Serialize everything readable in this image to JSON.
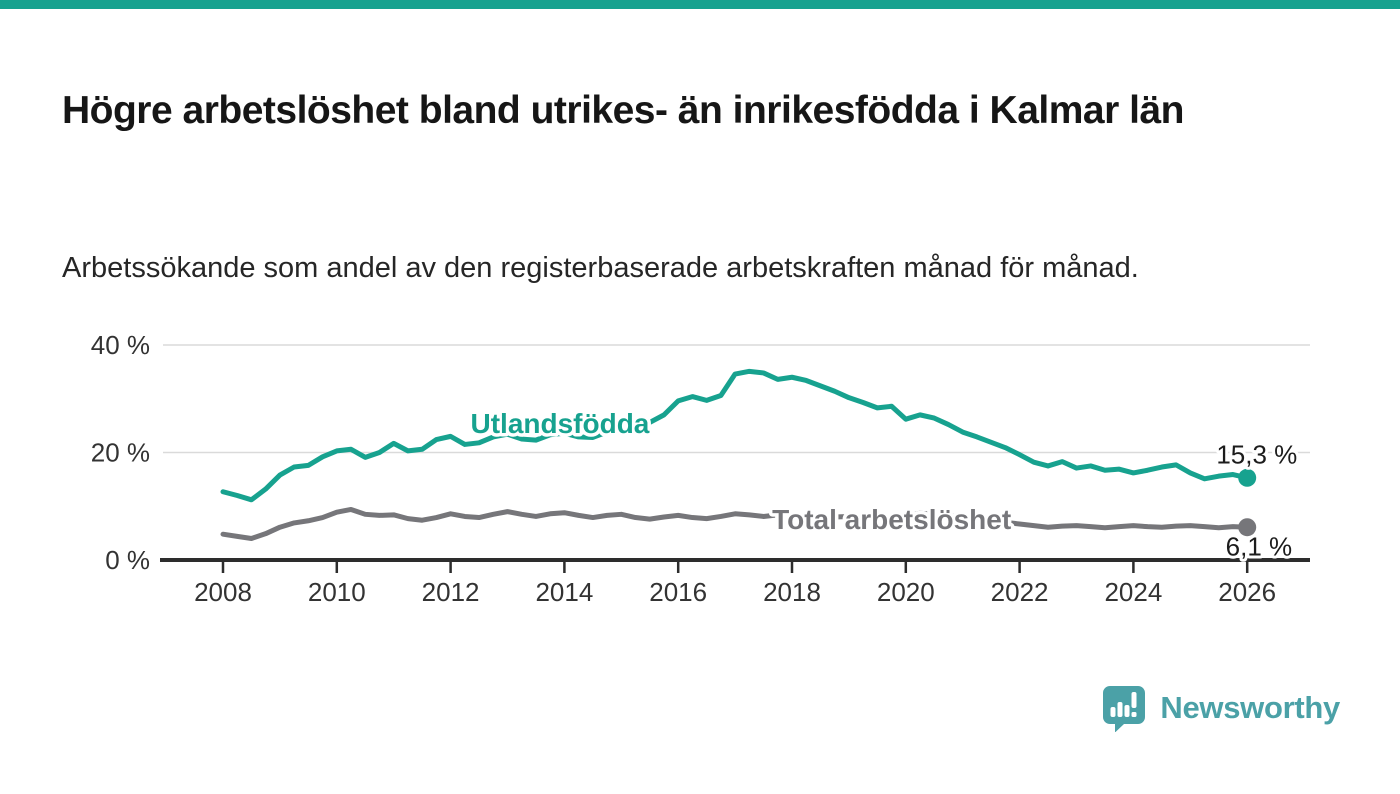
{
  "branding": {
    "top_bar_color": "#17a28f",
    "logo_text": "Newsworthy",
    "logo_color": "#4ba1a7"
  },
  "chart_data": {
    "type": "line",
    "title": "Högre arbetslöshet bland utrikes- än inrikesfödda i Kalmar län",
    "subtitle": "Arbetssökande som andel av den registerbaserade arbetskraften månad för månad.",
    "grid": "horizontal",
    "legend_position": "inline-labels",
    "xlim": [
      2006.9,
      2027.1
    ],
    "ylim": [
      0,
      42
    ],
    "x_start": 2008,
    "x_step": 0.25,
    "yticks": [
      {
        "value": 0,
        "label": "0 %"
      },
      {
        "value": 20,
        "label": "20 %"
      },
      {
        "value": 40,
        "label": "40 %"
      }
    ],
    "xticks": [
      {
        "value": 2008,
        "label": "2008"
      },
      {
        "value": 2010,
        "label": "2010"
      },
      {
        "value": 2012,
        "label": "2012"
      },
      {
        "value": 2014,
        "label": "2014"
      },
      {
        "value": 2016,
        "label": "2016"
      },
      {
        "value": 2018,
        "label": "2018"
      },
      {
        "value": 2020,
        "label": "2020"
      },
      {
        "value": 2022,
        "label": "2022"
      },
      {
        "value": 2024,
        "label": "2024"
      },
      {
        "value": 2026,
        "label": "2026"
      }
    ],
    "axis_color": "#2d2d2d",
    "grid_color": "#dadada",
    "tick_text_color": "#333333",
    "series": [
      {
        "name": "Utlandsfödda",
        "color": "#17a28f",
        "end_label": "15,3 %",
        "end_value": 15.3,
        "label_pos": {
          "x": 2012.35,
          "y": 23.6,
          "anchor": "start"
        },
        "end_label_pos": {
          "x": 2026.88,
          "y": 18.0,
          "anchor": "end"
        },
        "values": [
          12.7,
          12.0,
          11.2,
          13.2,
          15.8,
          17.3,
          17.6,
          19.2,
          20.3,
          20.6,
          19.1,
          20.0,
          21.7,
          20.3,
          20.6,
          22.4,
          23.0,
          21.5,
          21.8,
          22.9,
          23.4,
          22.5,
          22.3,
          23.3,
          23.6,
          22.9,
          22.8,
          23.8,
          24.6,
          25.0,
          25.6,
          27.0,
          29.6,
          30.4,
          29.7,
          30.6,
          34.6,
          35.1,
          34.8,
          33.6,
          34.0,
          33.4,
          32.4,
          31.4,
          30.2,
          29.3,
          28.3,
          28.6,
          26.2,
          27.0,
          26.4,
          25.2,
          23.8,
          22.9,
          21.9,
          20.9,
          19.6,
          18.2,
          17.5,
          18.3,
          17.1,
          17.5,
          16.7,
          16.9,
          16.2,
          16.7,
          17.3,
          17.7,
          16.2,
          15.1,
          15.6,
          15.9,
          15.3
        ]
      },
      {
        "name": "Total arbetslöshet",
        "color": "#76767a",
        "end_label": "6,1 %",
        "end_value": 6.1,
        "label_pos": {
          "x": 2017.65,
          "y": 5.8,
          "anchor": "start"
        },
        "end_label_pos": {
          "x": 2026.79,
          "y": 0.8,
          "anchor": "end"
        },
        "values": [
          4.8,
          4.4,
          4.0,
          4.9,
          6.1,
          6.9,
          7.3,
          7.9,
          8.9,
          9.4,
          8.5,
          8.3,
          8.4,
          7.7,
          7.4,
          7.9,
          8.6,
          8.1,
          7.9,
          8.5,
          9.0,
          8.5,
          8.1,
          8.6,
          8.8,
          8.3,
          7.9,
          8.3,
          8.5,
          7.9,
          7.6,
          8.0,
          8.3,
          7.9,
          7.7,
          8.1,
          8.6,
          8.4,
          8.1,
          8.4,
          8.5,
          8.1,
          7.8,
          8.0,
          8.1,
          7.8,
          7.6,
          7.9,
          8.1,
          8.7,
          8.5,
          8.2,
          8.0,
          7.6,
          7.2,
          7.0,
          6.7,
          6.4,
          6.1,
          6.3,
          6.4,
          6.2,
          6.0,
          6.2,
          6.4,
          6.2,
          6.1,
          6.3,
          6.4,
          6.2,
          6.0,
          6.2,
          6.1
        ]
      }
    ]
  }
}
